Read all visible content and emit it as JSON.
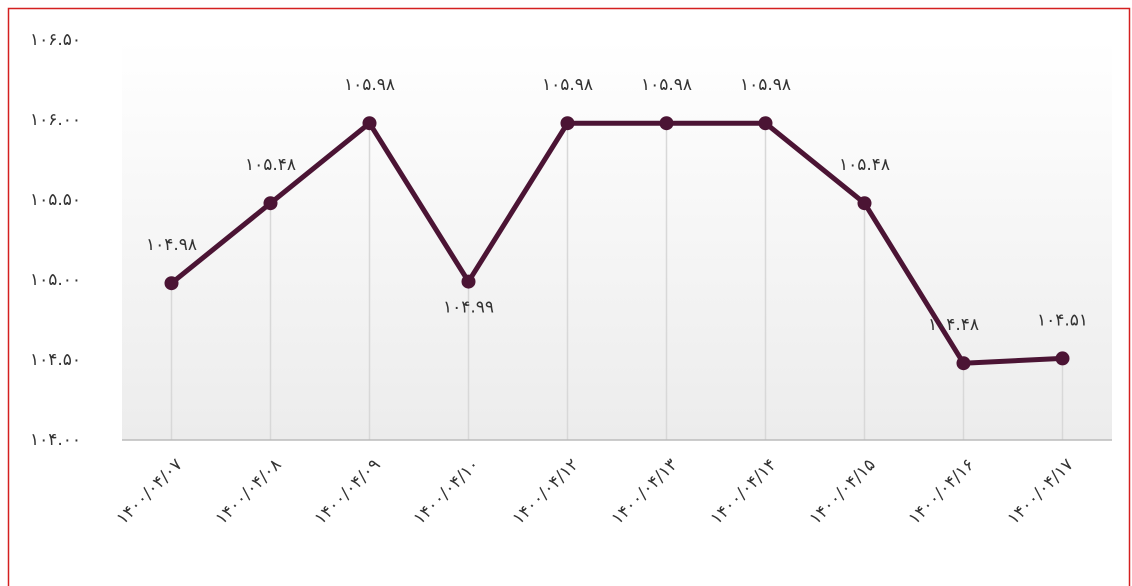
{
  "chart_data": {
    "type": "line",
    "categories": [
      "۱۴۰۰/۰۴/۰۷",
      "۱۴۰۰/۰۴/۰۸",
      "۱۴۰۰/۰۴/۰۹",
      "۱۴۰۰/۰۴/۱۰",
      "۱۴۰۰/۰۴/۱۲",
      "۱۴۰۰/۰۴/۱۳",
      "۱۴۰۰/۰۴/۱۴",
      "۱۴۰۰/۰۴/۱۵",
      "۱۴۰۰/۰۴/۱۶",
      "۱۴۰۰/۰۴/۱۷"
    ],
    "values": [
      104.98,
      105.48,
      105.98,
      104.99,
      105.98,
      105.98,
      105.98,
      105.48,
      104.48,
      104.51
    ],
    "value_labels": [
      "۱۰۴.۹۸",
      "۱۰۵.۴۸",
      "۱۰۵.۹۸",
      "۱۰۴.۹۹",
      "۱۰۵.۹۸",
      "۱۰۵.۹۸",
      "۱۰۵.۹۸",
      "۱۰۵.۴۸",
      "۱۰۴.۴۸",
      "۱۰۴.۵۱"
    ],
    "color": "#4b1434",
    "ylim": [
      104,
      106.5
    ],
    "yticks": [
      {
        "value": 104,
        "label": "۱۰۴.۰۰"
      },
      {
        "value": 104.5,
        "label": "۱۰۴.۵۰"
      },
      {
        "value": 105,
        "label": "۱۰۵.۰۰"
      },
      {
        "value": 105.5,
        "label": "۱۰۵.۵۰"
      },
      {
        "value": 106,
        "label": "۱۰۶.۰۰"
      },
      {
        "value": 106.5,
        "label": "۱۰۶.۵۰"
      }
    ]
  }
}
